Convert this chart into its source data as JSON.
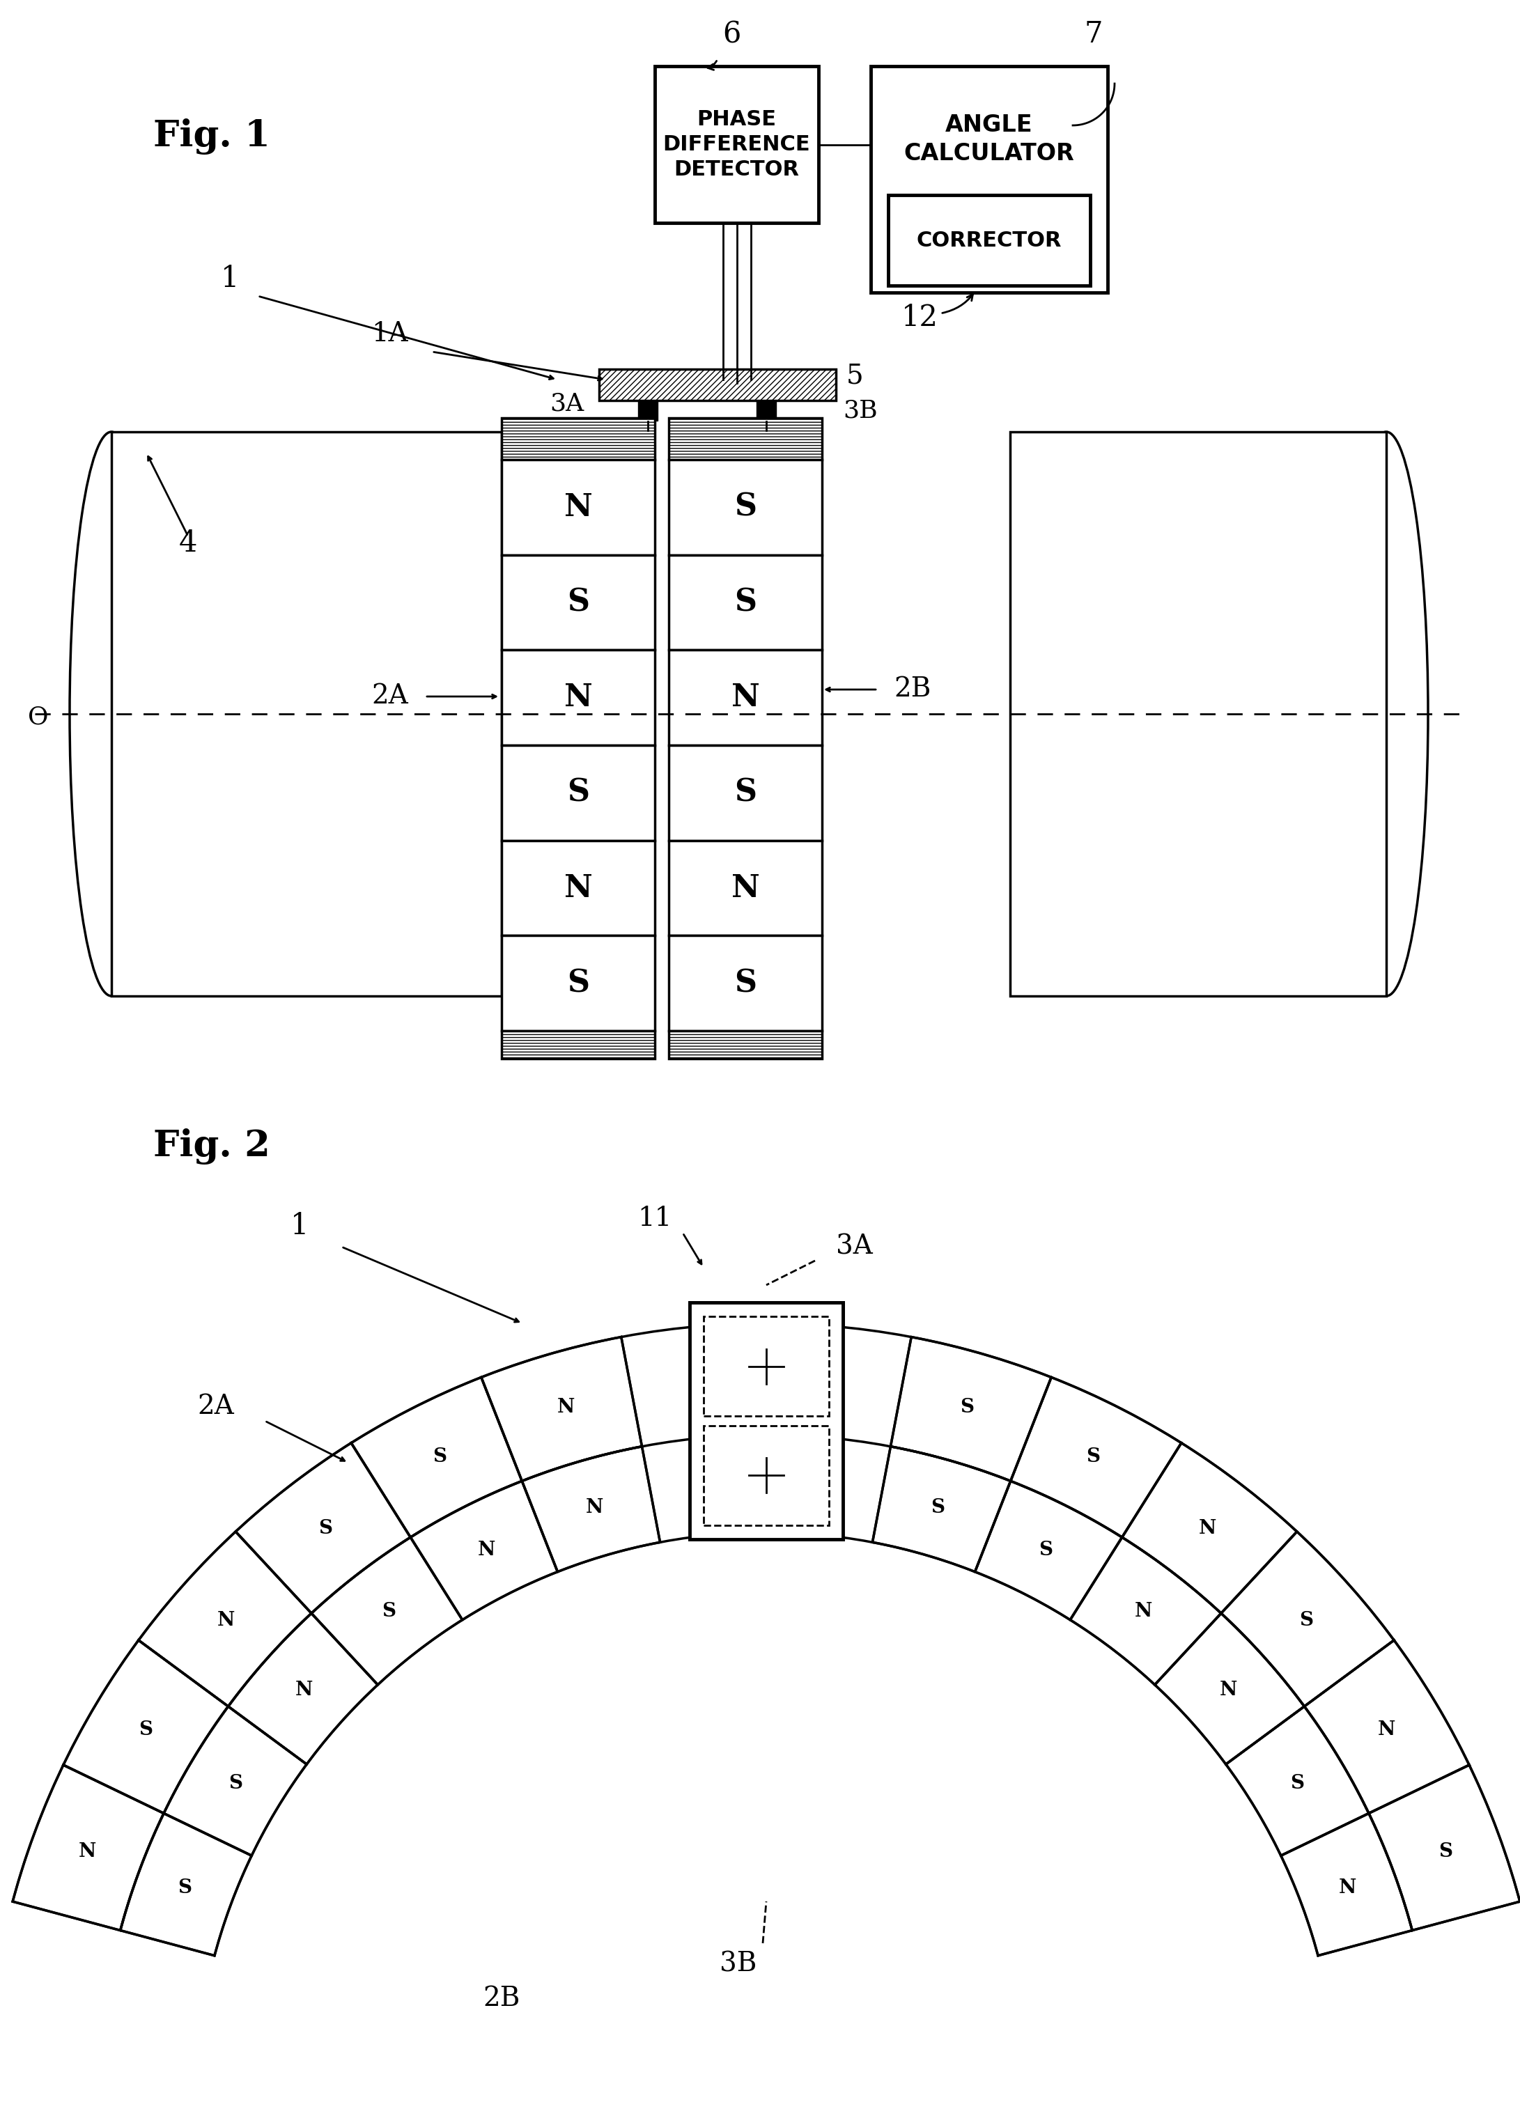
{
  "fig1_label": "Fig. 1",
  "fig2_label": "Fig. 2",
  "bg_color": "#ffffff",
  "line_color": "#000000",
  "labels": {
    "1": "1",
    "1A": "1A",
    "2A": "2A",
    "2B": "2B",
    "3A": "3A",
    "3B": "3B",
    "4": "4",
    "5": "5",
    "6": "6",
    "7": "7",
    "12": "12",
    "O": "O",
    "11": "11"
  },
  "box_phase": {
    "text": "PHASE\nDIFFERENCE\nDETECTOR"
  },
  "box_angle": {
    "text": "ANGLE\nCALCULATOR"
  },
  "box_corrector": {
    "text": "CORRECTOR"
  },
  "mag_poles_2A": [
    "N",
    "S",
    "N",
    "S",
    "N",
    "S"
  ],
  "mag_poles_2B": [
    "S",
    "S",
    "N",
    "S",
    "N",
    "S"
  ],
  "fig2_outer_poles": [
    "S",
    "N",
    "S",
    "N",
    "S",
    "S",
    "N",
    "S",
    "N",
    "S",
    "S",
    "N",
    "S",
    "N"
  ],
  "fig2_inner_poles": [
    "N",
    "S",
    "N",
    "N",
    "S",
    "S",
    "N",
    "S",
    "N",
    "N",
    "S",
    "N"
  ]
}
